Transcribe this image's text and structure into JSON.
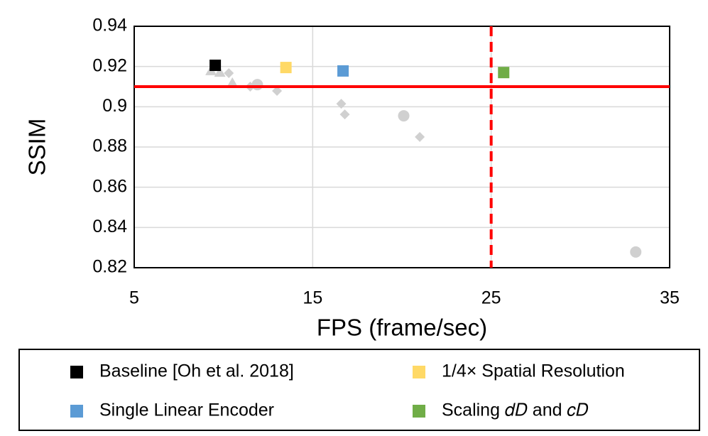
{
  "chart_data": {
    "type": "scatter",
    "x_label": "FPS (frame/sec)",
    "y_label": "SSIM",
    "xlim": [
      5,
      35
    ],
    "xticks": [
      5,
      15,
      25,
      35
    ],
    "ylim": [
      0.82,
      0.94
    ],
    "yticks": [
      0.82,
      0.84,
      0.86,
      0.88,
      0.9,
      0.92,
      0.94
    ],
    "grid": true,
    "threshold_y": {
      "value": 0.91,
      "color": "#ff0000"
    },
    "threshold_x": {
      "value": 25,
      "color": "#ff0000"
    },
    "legend": "bottom",
    "series": [
      {
        "name": "Baseline [Oh et al. 2018]",
        "color": "#000000",
        "marker": "square",
        "x": [
          9.54
        ],
        "values": [
          0.9206
        ]
      },
      {
        "name": "1/4× Spatial Resolution",
        "color": "#ffd966",
        "marker": "square",
        "x": [
          13.5
        ],
        "values": [
          0.9195
        ]
      },
      {
        "name": "Single Linear Encoder",
        "color": "#5b9bd5",
        "marker": "square",
        "x": [
          16.7
        ],
        "values": [
          0.9178
        ]
      },
      {
        "name": "Scaling 𝑑𝐷 and 𝑐𝐷",
        "color": "#70ad47",
        "marker": "square",
        "x": [
          25.7
        ],
        "values": [
          0.917
        ]
      },
      {
        "color": "#d0d0d0",
        "marker": "circle",
        "x": [
          11.9,
          20.1,
          33.1
        ],
        "values": [
          0.911,
          0.8955,
          0.8278
        ]
      },
      {
        "color": "#d0d0d0",
        "marker": "diamond",
        "x": [
          10.3,
          11.5,
          13.0,
          16.6,
          16.8,
          21.0
        ],
        "values": [
          0.9167,
          0.91,
          0.9079,
          0.9015,
          0.8962,
          0.885
        ]
      },
      {
        "color": "#d0d0d0",
        "marker": "triangle",
        "x": [
          9.3,
          9.8,
          10.5
        ],
        "values": [
          0.9178,
          0.917,
          0.9118
        ]
      }
    ]
  }
}
